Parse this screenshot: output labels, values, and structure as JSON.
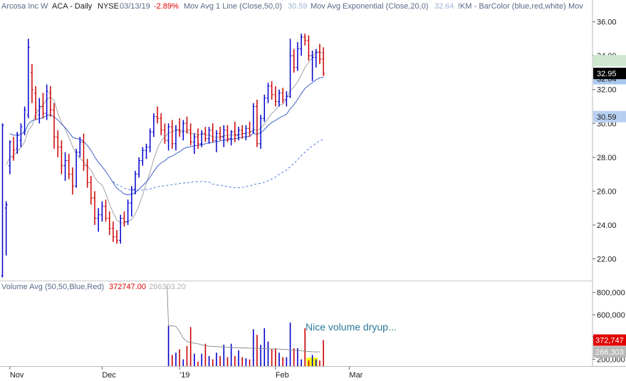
{
  "header": {
    "symbol_name": "Arcosa Inc W",
    "ticker": "ACA - Daily",
    "exchange": "NYSE",
    "date": "03/13/19",
    "change": "-2.89%",
    "ind1_label": "Mov Avg 1 Line (Close,50,0)",
    "ind1_value": "30.59",
    "ind2_label": "Mov Avg Exponential (Close,20,0)",
    "ind2_value": "32.64",
    "ind3_label": "!KM - BarColor (blue,red,white)",
    "ind4_label": "Mov"
  },
  "volume_header": {
    "label": "Volume Avg (50,50,Blue,Red)",
    "value1": "372747.00",
    "value2": "266303.20"
  },
  "annotation": "Nice volume dryup...",
  "colors": {
    "up": "#0000cc",
    "down": "#cc0000",
    "ma50": "#3a6fd8",
    "ema20": "#2a50c0",
    "vol_avg": "#888888",
    "highlight": "#ffff00"
  },
  "price_axis": {
    "ticks": [
      "36.00",
      "34.00",
      "32.00",
      "30.00",
      "28.00",
      "26.00",
      "24.00",
      "22.00"
    ],
    "tick_values": [
      36,
      34,
      32,
      30,
      28,
      26,
      24,
      22
    ],
    "range": [
      20.8,
      36.7
    ],
    "last_price_label": "32.95",
    "ema_label": "32.64",
    "ma_label": "30.59"
  },
  "volume_axis": {
    "ticks": [
      "800,000",
      "600,000",
      "400,000",
      "200,000"
    ],
    "tick_values": [
      800000,
      600000,
      400000,
      200000
    ],
    "range": [
      140000,
      900000
    ],
    "vol_label": "372,747",
    "avg_label": "266,303"
  },
  "x_axis": {
    "labels": [
      "Nov",
      "Dec",
      "'19",
      "Feb",
      "Mar"
    ],
    "label_bars": [
      2,
      27,
      48,
      74,
      94
    ]
  },
  "chart_data": {
    "type": "ohlc",
    "title": "",
    "bars": [
      {
        "o": 21.0,
        "h": 30.0,
        "l": 20.9,
        "c": 29.9,
        "v": null,
        "up": true
      },
      {
        "o": 25.0,
        "h": 25.4,
        "l": 22.2,
        "c": 25.2,
        "v": null,
        "up": true
      },
      {
        "o": 27.5,
        "h": 29.0,
        "l": 27.0,
        "c": 28.9,
        "v": null,
        "up": true
      },
      {
        "o": 28.0,
        "h": 29.2,
        "l": 27.8,
        "c": 28.4,
        "v": null,
        "up": false
      },
      {
        "o": 28.5,
        "h": 29.5,
        "l": 28.2,
        "c": 29.3,
        "v": null,
        "up": true
      },
      {
        "o": 29.0,
        "h": 30.0,
        "l": 28.6,
        "c": 29.8,
        "v": null,
        "up": true
      },
      {
        "o": 29.5,
        "h": 31.0,
        "l": 29.3,
        "c": 30.8,
        "v": null,
        "up": true
      },
      {
        "o": 30.5,
        "h": 35.0,
        "l": 30.3,
        "c": 34.5,
        "v": null,
        "up": true
      },
      {
        "o": 33.0,
        "h": 33.5,
        "l": 31.2,
        "c": 32.0,
        "v": null,
        "up": false
      },
      {
        "o": 31.8,
        "h": 32.2,
        "l": 30.2,
        "c": 30.8,
        "v": null,
        "up": false
      },
      {
        "o": 30.5,
        "h": 31.5,
        "l": 30.0,
        "c": 31.0,
        "v": null,
        "up": true
      },
      {
        "o": 31.0,
        "h": 31.8,
        "l": 30.3,
        "c": 30.6,
        "v": null,
        "up": false
      },
      {
        "o": 30.6,
        "h": 32.3,
        "l": 30.2,
        "c": 31.9,
        "v": null,
        "up": true
      },
      {
        "o": 31.8,
        "h": 32.2,
        "l": 30.4,
        "c": 30.8,
        "v": null,
        "up": false
      },
      {
        "o": 30.8,
        "h": 31.2,
        "l": 28.5,
        "c": 29.2,
        "v": null,
        "up": false
      },
      {
        "o": 29.2,
        "h": 29.6,
        "l": 28.0,
        "c": 28.6,
        "v": null,
        "up": false
      },
      {
        "o": 28.6,
        "h": 29.0,
        "l": 27.0,
        "c": 27.5,
        "v": null,
        "up": false
      },
      {
        "o": 27.5,
        "h": 28.3,
        "l": 26.6,
        "c": 27.8,
        "v": null,
        "up": true
      },
      {
        "o": 27.8,
        "h": 28.2,
        "l": 26.7,
        "c": 27.0,
        "v": null,
        "up": false
      },
      {
        "o": 27.0,
        "h": 27.4,
        "l": 25.8,
        "c": 26.3,
        "v": null,
        "up": false
      },
      {
        "o": 26.3,
        "h": 28.5,
        "l": 26.2,
        "c": 28.3,
        "v": null,
        "up": true
      },
      {
        "o": 28.3,
        "h": 29.2,
        "l": 28.0,
        "c": 28.9,
        "v": null,
        "up": true
      },
      {
        "o": 28.9,
        "h": 29.4,
        "l": 27.2,
        "c": 27.5,
        "v": null,
        "up": false
      },
      {
        "o": 27.5,
        "h": 27.9,
        "l": 26.2,
        "c": 26.5,
        "v": null,
        "up": false
      },
      {
        "o": 26.5,
        "h": 26.9,
        "l": 25.2,
        "c": 25.6,
        "v": null,
        "up": false
      },
      {
        "o": 25.6,
        "h": 26.0,
        "l": 24.0,
        "c": 24.4,
        "v": null,
        "up": false
      },
      {
        "o": 24.4,
        "h": 25.0,
        "l": 23.6,
        "c": 24.6,
        "v": null,
        "up": true
      },
      {
        "o": 24.6,
        "h": 25.4,
        "l": 24.2,
        "c": 25.1,
        "v": null,
        "up": true
      },
      {
        "o": 25.1,
        "h": 25.5,
        "l": 24.2,
        "c": 24.4,
        "v": null,
        "up": false
      },
      {
        "o": 24.4,
        "h": 24.8,
        "l": 23.4,
        "c": 23.8,
        "v": null,
        "up": false
      },
      {
        "o": 23.8,
        "h": 24.2,
        "l": 23.0,
        "c": 23.3,
        "v": null,
        "up": false
      },
      {
        "o": 23.3,
        "h": 23.7,
        "l": 22.9,
        "c": 23.1,
        "v": null,
        "up": false
      },
      {
        "o": 23.1,
        "h": 24.6,
        "l": 22.9,
        "c": 24.4,
        "v": null,
        "up": true
      },
      {
        "o": 24.4,
        "h": 24.8,
        "l": 23.9,
        "c": 24.2,
        "v": null,
        "up": false
      },
      {
        "o": 24.2,
        "h": 25.5,
        "l": 24.0,
        "c": 25.3,
        "v": null,
        "up": true
      },
      {
        "o": 25.3,
        "h": 26.3,
        "l": 24.5,
        "c": 26.1,
        "v": null,
        "up": true
      },
      {
        "o": 26.1,
        "h": 27.2,
        "l": 25.8,
        "c": 27.0,
        "v": null,
        "up": true
      },
      {
        "o": 27.0,
        "h": 28.0,
        "l": 26.8,
        "c": 27.8,
        "v": null,
        "up": true
      },
      {
        "o": 27.8,
        "h": 28.6,
        "l": 27.5,
        "c": 28.4,
        "v": null,
        "up": true
      },
      {
        "o": 28.4,
        "h": 28.8,
        "l": 27.9,
        "c": 28.6,
        "v": null,
        "up": true
      },
      {
        "o": 28.6,
        "h": 29.7,
        "l": 28.3,
        "c": 29.5,
        "v": null,
        "up": true
      },
      {
        "o": 29.5,
        "h": 30.6,
        "l": 29.2,
        "c": 30.4,
        "v": null,
        "up": true
      },
      {
        "o": 30.4,
        "h": 31.0,
        "l": 30.0,
        "c": 30.3,
        "v": null,
        "up": false
      },
      {
        "o": 30.3,
        "h": 30.6,
        "l": 29.3,
        "c": 29.6,
        "v": null,
        "up": false
      },
      {
        "o": 29.6,
        "h": 30.0,
        "l": 28.8,
        "c": 29.0,
        "v": null,
        "up": false
      },
      {
        "o": 29.0,
        "h": 30.0,
        "l": 28.4,
        "c": 29.8,
        "v": 500000,
        "up": true
      },
      {
        "o": 29.8,
        "h": 30.2,
        "l": 28.5,
        "c": 28.8,
        "v": 240000,
        "up": false
      },
      {
        "o": 28.8,
        "h": 29.9,
        "l": 28.4,
        "c": 29.6,
        "v": 260000,
        "up": true
      },
      {
        "o": 29.6,
        "h": 30.3,
        "l": 29.2,
        "c": 29.5,
        "v": 290000,
        "up": false
      },
      {
        "o": 29.5,
        "h": 30.2,
        "l": 29.0,
        "c": 30.0,
        "v": 200000,
        "up": true
      },
      {
        "o": 30.0,
        "h": 30.4,
        "l": 29.4,
        "c": 29.6,
        "v": 320000,
        "up": false
      },
      {
        "o": 29.6,
        "h": 30.0,
        "l": 28.7,
        "c": 28.9,
        "v": 490000,
        "up": false
      },
      {
        "o": 28.9,
        "h": 29.4,
        "l": 28.2,
        "c": 29.2,
        "v": 250000,
        "up": true
      },
      {
        "o": 29.2,
        "h": 29.7,
        "l": 28.5,
        "c": 28.8,
        "v": 180000,
        "up": false
      },
      {
        "o": 28.8,
        "h": 29.6,
        "l": 28.6,
        "c": 29.4,
        "v": 250000,
        "up": true
      },
      {
        "o": 29.4,
        "h": 29.8,
        "l": 28.9,
        "c": 29.1,
        "v": 340000,
        "up": false
      },
      {
        "o": 29.1,
        "h": 29.8,
        "l": 28.8,
        "c": 29.6,
        "v": 230000,
        "up": true
      },
      {
        "o": 29.6,
        "h": 30.0,
        "l": 28.9,
        "c": 29.0,
        "v": 200000,
        "up": false
      },
      {
        "o": 29.0,
        "h": 29.6,
        "l": 28.3,
        "c": 29.4,
        "v": 260000,
        "up": true
      },
      {
        "o": 29.4,
        "h": 29.8,
        "l": 29.0,
        "c": 29.2,
        "v": 230000,
        "up": false
      },
      {
        "o": 29.2,
        "h": 29.9,
        "l": 28.6,
        "c": 29.6,
        "v": 330000,
        "up": true
      },
      {
        "o": 29.6,
        "h": 29.9,
        "l": 28.9,
        "c": 29.1,
        "v": 220000,
        "up": false
      },
      {
        "o": 29.1,
        "h": 29.6,
        "l": 28.7,
        "c": 29.5,
        "v": 340000,
        "up": true
      },
      {
        "o": 29.5,
        "h": 30.1,
        "l": 28.9,
        "c": 29.3,
        "v": 230000,
        "up": false
      },
      {
        "o": 29.3,
        "h": 29.8,
        "l": 29.0,
        "c": 29.6,
        "v": 280000,
        "up": true
      },
      {
        "o": 29.6,
        "h": 29.9,
        "l": 29.1,
        "c": 29.4,
        "v": 220000,
        "up": false
      },
      {
        "o": 29.4,
        "h": 29.9,
        "l": 29.0,
        "c": 29.7,
        "v": 210000,
        "up": true
      },
      {
        "o": 29.7,
        "h": 30.1,
        "l": 29.2,
        "c": 29.5,
        "v": 200000,
        "up": false
      },
      {
        "o": 29.5,
        "h": 31.2,
        "l": 29.4,
        "c": 31.0,
        "v": 470000,
        "up": true
      },
      {
        "o": 31.0,
        "h": 31.4,
        "l": 28.6,
        "c": 28.8,
        "v": 420000,
        "up": false
      },
      {
        "o": 28.8,
        "h": 30.5,
        "l": 28.5,
        "c": 30.3,
        "v": 330000,
        "up": true
      },
      {
        "o": 30.3,
        "h": 31.7,
        "l": 30.1,
        "c": 31.5,
        "v": 480000,
        "up": true
      },
      {
        "o": 31.5,
        "h": 32.4,
        "l": 31.2,
        "c": 32.2,
        "v": 360000,
        "up": true
      },
      {
        "o": 32.2,
        "h": 32.5,
        "l": 31.4,
        "c": 31.7,
        "v": 290000,
        "up": false
      },
      {
        "o": 31.7,
        "h": 32.2,
        "l": 31.0,
        "c": 31.3,
        "v": 300000,
        "up": false
      },
      {
        "o": 31.3,
        "h": 32.0,
        "l": 31.0,
        "c": 31.8,
        "v": 260000,
        "up": true
      },
      {
        "o": 31.8,
        "h": 32.1,
        "l": 31.2,
        "c": 31.4,
        "v": 220000,
        "up": false
      },
      {
        "o": 31.4,
        "h": 31.9,
        "l": 31.0,
        "c": 31.6,
        "v": 220000,
        "up": true
      },
      {
        "o": 31.6,
        "h": 35.0,
        "l": 31.5,
        "c": 34.0,
        "v": 530000,
        "up": true
      },
      {
        "o": 34.0,
        "h": 34.4,
        "l": 33.0,
        "c": 33.3,
        "v": 300000,
        "up": false
      },
      {
        "o": 33.3,
        "h": 34.8,
        "l": 33.1,
        "c": 34.4,
        "v": 300000,
        "up": true
      },
      {
        "o": 34.4,
        "h": 35.3,
        "l": 34.0,
        "c": 35.1,
        "v": 200000,
        "up": true
      },
      {
        "o": 35.1,
        "h": 35.3,
        "l": 34.6,
        "c": 34.9,
        "v": 480000,
        "up": false
      },
      {
        "o": 34.9,
        "h": 35.2,
        "l": 33.7,
        "c": 34.0,
        "v": 190000,
        "up": false
      },
      {
        "o": 34.0,
        "h": 34.3,
        "l": 32.5,
        "c": 33.9,
        "v": 240000,
        "up": true
      },
      {
        "o": 33.9,
        "h": 34.4,
        "l": 33.3,
        "c": 34.2,
        "v": 200000,
        "up": true
      },
      {
        "o": 34.2,
        "h": 34.7,
        "l": 33.5,
        "c": 33.8,
        "v": 190000,
        "up": false
      },
      {
        "o": 33.8,
        "h": 34.5,
        "l": 32.8,
        "c": 32.95,
        "v": 372747,
        "up": false
      }
    ],
    "volume_avg_start_bar": 45,
    "volume_avg": [
      500000,
      500000,
      495000,
      450000,
      390000,
      360000,
      350000,
      345000,
      340000,
      330000,
      322000,
      318000,
      316000,
      315000,
      313000,
      310000,
      308000,
      306000,
      305000,
      304000,
      303000,
      302000,
      300000,
      299000,
      298000,
      297000,
      296000,
      295000,
      294000,
      293000,
      292000,
      290000,
      288000,
      285000,
      282000,
      279000,
      276000,
      273000,
      270000,
      268000,
      267000,
      266303
    ]
  }
}
